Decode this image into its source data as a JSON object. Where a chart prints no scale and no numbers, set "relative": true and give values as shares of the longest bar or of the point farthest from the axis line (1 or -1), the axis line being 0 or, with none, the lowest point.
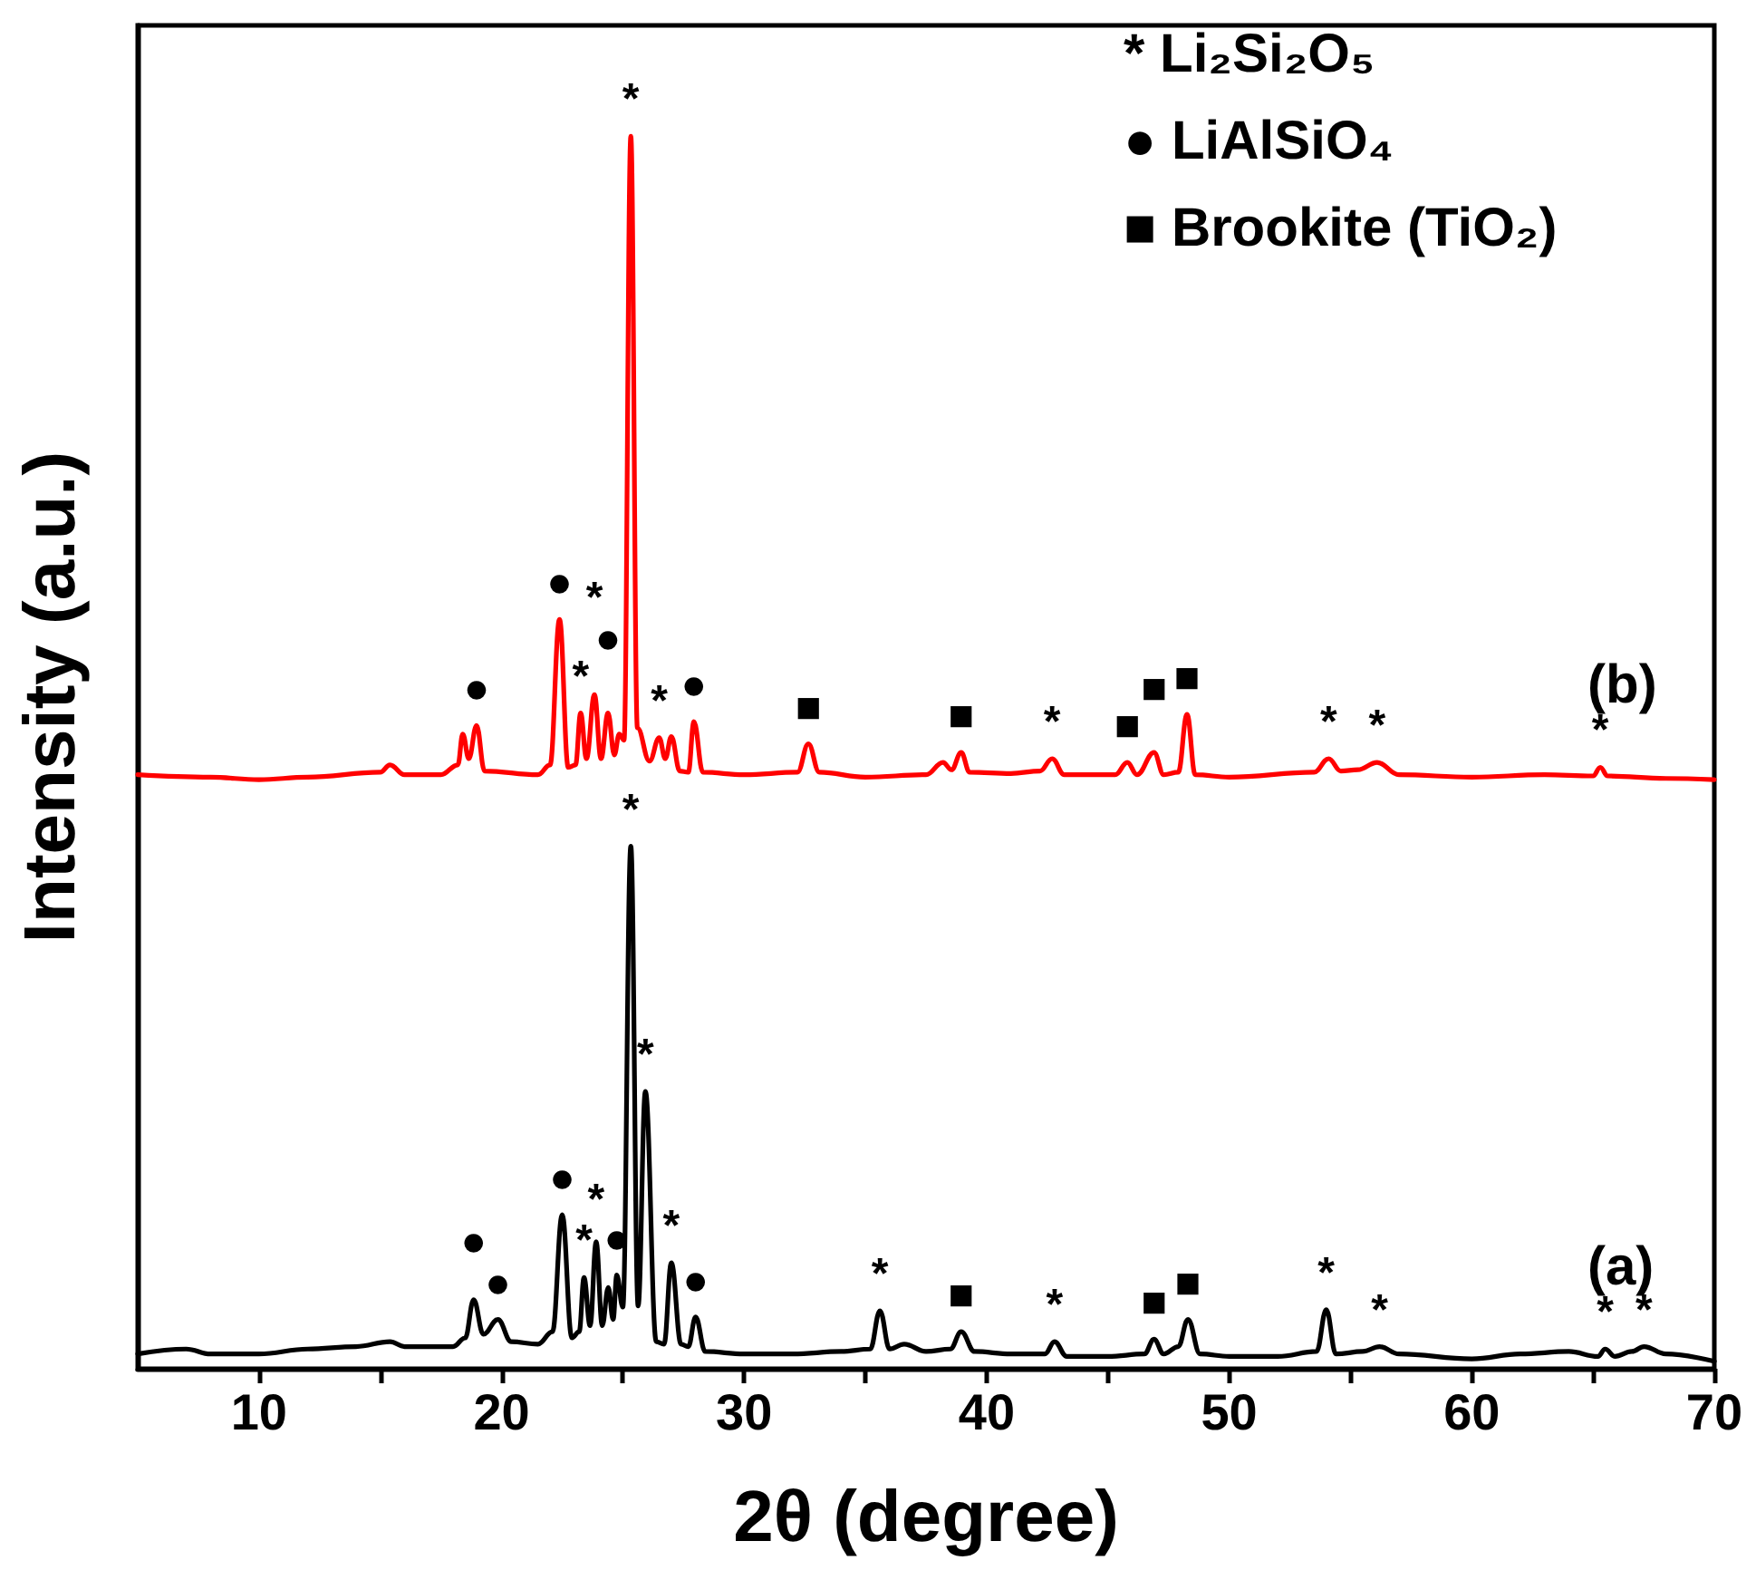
{
  "chart_data": {
    "type": "line",
    "relative": true,
    "xlabel": "2θ (degree)",
    "ylabel": "Intensity (a.u.)",
    "xlim": [
      5,
      70
    ],
    "xticks": [
      10,
      {
        "value": 15,
        "label": null
      },
      20,
      {
        "value": 25,
        "label": null
      },
      30,
      {
        "value": 35,
        "label": null
      },
      40,
      {
        "value": 45,
        "label": null
      },
      50,
      {
        "value": 55,
        "label": null
      },
      60,
      {
        "value": 65,
        "label": null
      },
      70
    ],
    "grid": false,
    "legend": false,
    "marker": "none",
    "line_style": "solid",
    "series": [
      {
        "name": "(a)",
        "color": "#000000",
        "x": [
          5,
          7,
          8,
          10,
          12,
          14,
          15.4,
          16,
          18,
          18.5,
          18.85,
          19.25,
          19.85,
          20.4,
          21.5,
          22.1,
          22.5,
          22.9,
          23.2,
          23.4,
          23.65,
          23.9,
          24.15,
          24.4,
          24.6,
          24.75,
          25.0,
          25.33,
          25.63,
          25.93,
          26.38,
          26.7,
          27.0,
          27.4,
          27.7,
          28.0,
          28.4,
          30,
          32,
          34,
          35.2,
          35.6,
          36.0,
          36.6,
          37.5,
          38.5,
          38.95,
          39.5,
          41,
          42.4,
          42.8,
          43.3,
          45,
          46.5,
          46.9,
          47.3,
          47.9,
          48.3,
          48.8,
          50,
          52,
          53.6,
          54.0,
          54.4,
          55.5,
          56.2,
          57,
          60,
          62,
          64,
          65.2,
          65.5,
          65.9,
          66.6,
          67.1,
          68,
          70
        ],
        "values": [
          0.012,
          0.016,
          0.012,
          0.012,
          0.016,
          0.018,
          0.022,
          0.018,
          0.018,
          0.025,
          0.056,
          0.028,
          0.04,
          0.022,
          0.02,
          0.03,
          0.125,
          0.025,
          0.03,
          0.074,
          0.035,
          0.103,
          0.035,
          0.066,
          0.04,
          0.076,
          0.05,
          0.424,
          0.051,
          0.225,
          0.022,
          0.02,
          0.086,
          0.02,
          0.018,
          0.042,
          0.014,
          0.012,
          0.012,
          0.014,
          0.016,
          0.047,
          0.016,
          0.02,
          0.014,
          0.016,
          0.03,
          0.014,
          0.012,
          0.012,
          0.022,
          0.01,
          0.01,
          0.012,
          0.024,
          0.012,
          0.018,
          0.04,
          0.012,
          0.01,
          0.01,
          0.014,
          0.048,
          0.012,
          0.014,
          0.018,
          0.012,
          0.008,
          0.012,
          0.014,
          0.01,
          0.016,
          0.01,
          0.014,
          0.018,
          0.012,
          0.006
        ]
      },
      {
        "name": "(b)",
        "color": "#ff0000",
        "x": [
          5,
          8,
          10,
          12,
          15,
          15.4,
          16,
          17.5,
          18.2,
          18.4,
          18.65,
          18.97,
          19.3,
          21.5,
          22.0,
          22.39,
          22.75,
          23.05,
          23.26,
          23.5,
          23.83,
          24.1,
          24.39,
          24.65,
          24.85,
          25.05,
          25.33,
          25.6,
          26.1,
          26.5,
          26.75,
          27.0,
          27.35,
          27.7,
          27.93,
          28.3,
          30,
          32.2,
          32.65,
          33.1,
          35,
          37.5,
          38.2,
          38.55,
          38.95,
          39.3,
          41,
          42.2,
          42.7,
          43.2,
          45.3,
          45.8,
          46.2,
          46.9,
          47.3,
          47.9,
          48.26,
          48.6,
          50,
          53.5,
          54.1,
          54.6,
          55.3,
          56.1,
          57,
          60,
          63,
          65.0,
          65.3,
          65.6,
          68,
          70
        ],
        "values": [
          0.482,
          0.48,
          0.478,
          0.48,
          0.484,
          0.49,
          0.482,
          0.482,
          0.49,
          0.515,
          0.495,
          0.522,
          0.485,
          0.482,
          0.49,
          0.608,
          0.488,
          0.49,
          0.532,
          0.495,
          0.547,
          0.495,
          0.532,
          0.498,
          0.515,
          0.51,
          1.0,
          0.52,
          0.493,
          0.512,
          0.495,
          0.513,
          0.485,
          0.484,
          0.525,
          0.484,
          0.482,
          0.484,
          0.507,
          0.484,
          0.48,
          0.482,
          0.492,
          0.486,
          0.5,
          0.484,
          0.483,
          0.485,
          0.495,
          0.482,
          0.482,
          0.492,
          0.482,
          0.5,
          0.482,
          0.484,
          0.531,
          0.482,
          0.48,
          0.484,
          0.495,
          0.485,
          0.486,
          0.492,
          0.482,
          0.48,
          0.482,
          0.481,
          0.488,
          0.481,
          0.479,
          0.478
        ]
      }
    ],
    "annotations": [
      "* Li₂Si₂O₅",
      "● LiAlSiO₄",
      "■ Brookite (TiO₂)",
      {
        "text": "●",
        "x": 18.85,
        "y": 0.056
      },
      {
        "text": "●",
        "x": 19.85,
        "y": 0.04
      },
      {
        "text": "●",
        "x": 22.5,
        "y": 0.125
      },
      {
        "text": "*",
        "x": 23.9,
        "y": 0.103
      },
      {
        "text": "*",
        "x": 23.4,
        "y": 0.074
      },
      {
        "text": "●",
        "x": 24.75,
        "y": 0.076
      },
      {
        "text": "*",
        "x": 25.33,
        "y": 0.424
      },
      {
        "text": "*",
        "x": 25.93,
        "y": 0.225
      },
      {
        "text": "*",
        "x": 27.0,
        "y": 0.086
      },
      {
        "text": "●",
        "x": 28.0,
        "y": 0.042
      },
      {
        "text": "*",
        "x": 35.6,
        "y": 0.047
      },
      {
        "text": "■",
        "x": 38.95,
        "y": 0.03
      },
      {
        "text": "*",
        "x": 42.8,
        "y": 0.022
      },
      {
        "text": "■",
        "x": 46.9,
        "y": 0.024
      },
      {
        "text": "■",
        "x": 48.3,
        "y": 0.04
      },
      {
        "text": "*",
        "x": 54.0,
        "y": 0.048
      },
      {
        "text": "*",
        "x": 56.2,
        "y": 0.018
      },
      {
        "text": "*",
        "x": 65.5,
        "y": 0.016
      },
      {
        "text": "*",
        "x": 67.1,
        "y": 0.018
      },
      {
        "text": "●",
        "x": 18.97,
        "y": 0.522
      },
      {
        "text": "●",
        "x": 22.39,
        "y": 0.608
      },
      {
        "text": "*",
        "x": 23.83,
        "y": 0.547
      },
      {
        "text": "*",
        "x": 23.26,
        "y": 0.532
      },
      {
        "text": "●",
        "x": 24.39,
        "y": 0.532
      },
      {
        "text": "*",
        "x": 25.33,
        "y": 1.0
      },
      {
        "text": "*",
        "x": 26.5,
        "y": 0.512
      },
      {
        "text": "●",
        "x": 27.93,
        "y": 0.525
      },
      {
        "text": "■",
        "x": 32.65,
        "y": 0.507
      },
      {
        "text": "■",
        "x": 38.95,
        "y": 0.5
      },
      {
        "text": "*",
        "x": 42.7,
        "y": 0.495
      },
      {
        "text": "■",
        "x": 45.8,
        "y": 0.492
      },
      {
        "text": "■",
        "x": 46.9,
        "y": 0.5
      },
      {
        "text": "■",
        "x": 48.26,
        "y": 0.531
      },
      {
        "text": "*",
        "x": 54.1,
        "y": 0.495
      },
      {
        "text": "*",
        "x": 56.1,
        "y": 0.492
      },
      {
        "text": "*",
        "x": 65.3,
        "y": 0.488
      }
    ]
  }
}
